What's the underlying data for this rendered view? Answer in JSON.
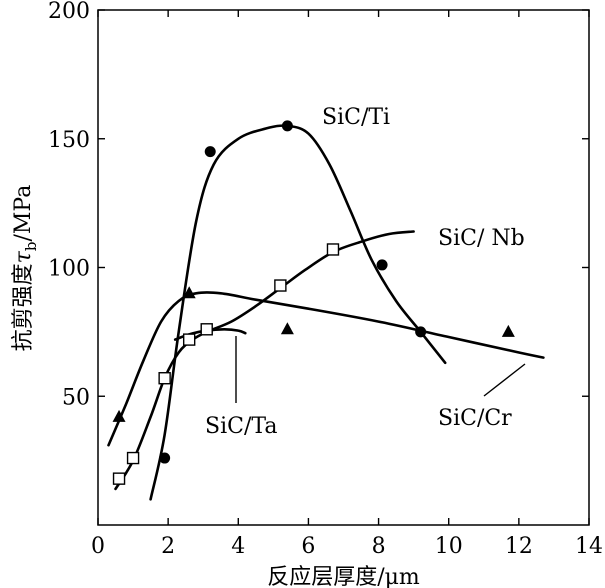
{
  "chart_data": {
    "type": "line",
    "xlabel": "反应层厚度/μm",
    "ylabel": "抗剪强度τ_b/MPa",
    "ylabel_main": "抗剪强度",
    "ylabel_tau": "τ",
    "ylabel_sub": "b",
    "ylabel_unit": "/MPa",
    "xlim": [
      0,
      14
    ],
    "ylim": [
      0,
      200
    ],
    "xticks": [
      "0",
      "2",
      "4",
      "6",
      "8",
      "10",
      "12",
      "14"
    ],
    "yticks": [
      "50",
      "100",
      "150",
      "200"
    ],
    "grid": false,
    "series": [
      {
        "name": "SiC/Ti",
        "marker": "filled-circle",
        "points": [
          [
            1.9,
            26
          ],
          [
            3.2,
            145
          ],
          [
            5.4,
            155
          ],
          [
            8.1,
            101
          ],
          [
            9.2,
            75
          ]
        ],
        "curve": [
          [
            1.5,
            10
          ],
          [
            1.9,
            35
          ],
          [
            2.3,
            75
          ],
          [
            2.8,
            118
          ],
          [
            3.3,
            140
          ],
          [
            4.0,
            150
          ],
          [
            4.8,
            154
          ],
          [
            5.4,
            155
          ],
          [
            6.0,
            152
          ],
          [
            6.6,
            140
          ],
          [
            7.2,
            122
          ],
          [
            7.8,
            103
          ],
          [
            8.5,
            87
          ],
          [
            9.2,
            75
          ],
          [
            9.9,
            63
          ]
        ]
      },
      {
        "name": "SiC/Nb",
        "marker": "open-square",
        "points": [
          [
            0.6,
            18
          ],
          [
            1.0,
            26
          ],
          [
            1.9,
            57
          ],
          [
            2.6,
            72
          ],
          [
            3.1,
            76
          ],
          [
            5.2,
            93
          ],
          [
            6.7,
            107
          ]
        ],
        "curve": [
          [
            0.5,
            14
          ],
          [
            1.0,
            25
          ],
          [
            1.5,
            42
          ],
          [
            1.9,
            57
          ],
          [
            2.3,
            67
          ],
          [
            2.7,
            72
          ],
          [
            3.1,
            75
          ],
          [
            3.8,
            79
          ],
          [
            4.5,
            85
          ],
          [
            5.2,
            92
          ],
          [
            5.9,
            99
          ],
          [
            6.7,
            106
          ],
          [
            7.5,
            110
          ],
          [
            8.3,
            113
          ],
          [
            9.0,
            114
          ]
        ]
      },
      {
        "name": "SiC/Ta",
        "marker": "none",
        "points": [],
        "curve": [
          [
            2.2,
            72
          ],
          [
            2.6,
            74
          ],
          [
            3.1,
            75.5
          ],
          [
            3.6,
            76
          ],
          [
            4.0,
            75.5
          ],
          [
            4.2,
            74.5
          ]
        ]
      },
      {
        "name": "SiC/Cr",
        "marker": "filled-triangle",
        "points": [
          [
            0.6,
            42
          ],
          [
            2.6,
            90
          ],
          [
            5.4,
            76
          ],
          [
            11.7,
            75
          ]
        ],
        "curve": [
          [
            0.3,
            31
          ],
          [
            0.8,
            47
          ],
          [
            1.3,
            64
          ],
          [
            1.8,
            79
          ],
          [
            2.3,
            87
          ],
          [
            2.8,
            90
          ],
          [
            3.5,
            90
          ],
          [
            4.5,
            87.5
          ],
          [
            6,
            84
          ],
          [
            8,
            79
          ],
          [
            10,
            73
          ],
          [
            12,
            67
          ],
          [
            12.7,
            65
          ]
        ]
      }
    ],
    "annotations": [
      {
        "text": "SiC/Ti",
        "series": "SiC/Ti"
      },
      {
        "text": "SiC/ Nb",
        "series": "SiC/Nb"
      },
      {
        "text": "SiC/Ta",
        "series": "SiC/Ta"
      },
      {
        "text": "SiC/Cr",
        "series": "SiC/Cr"
      }
    ]
  }
}
